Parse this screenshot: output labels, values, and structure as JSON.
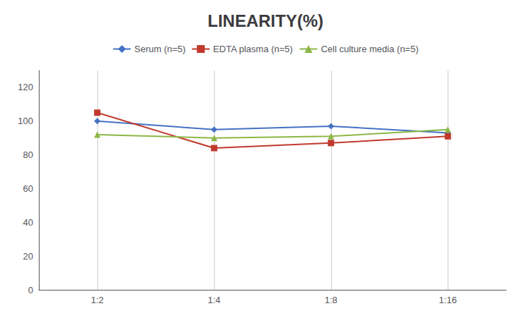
{
  "chart_data": {
    "type": "line",
    "title": "LINEARITY(%)",
    "categories": [
      "1:2",
      "1:4",
      "1:8",
      "1:16"
    ],
    "series": [
      {
        "name": "Serum (n=5)",
        "color": "#4472C4",
        "marker": "diamond",
        "values": [
          100,
          95,
          97,
          93
        ]
      },
      {
        "name": "EDTA plasma (n=5)",
        "color": "#C0392B",
        "marker": "square",
        "values": [
          105,
          84,
          87,
          91
        ]
      },
      {
        "name": "Cell culture media (n=5)",
        "color": "#8DB645",
        "marker": "triangle",
        "values": [
          92,
          90,
          91,
          95
        ]
      }
    ],
    "ylim": [
      0,
      130
    ],
    "yticks": [
      0,
      20,
      40,
      60,
      80,
      100,
      120
    ],
    "grid": "x",
    "legend": "top"
  }
}
